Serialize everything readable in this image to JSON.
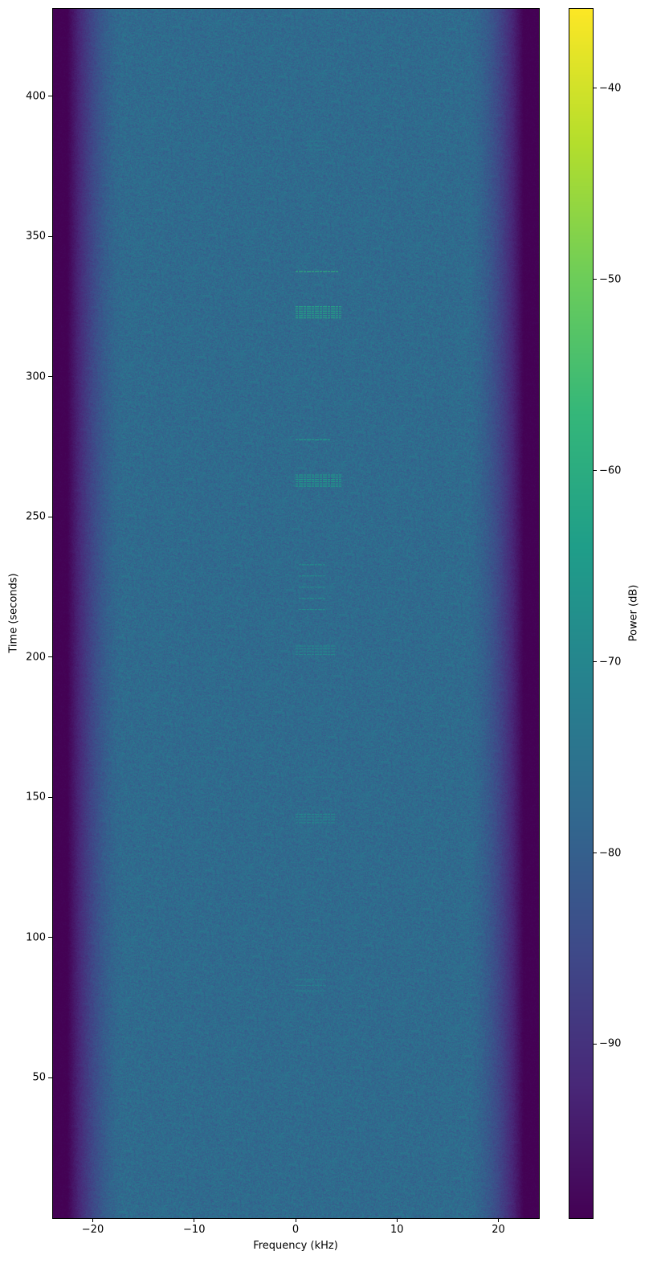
{
  "chart_data": {
    "type": "heatmap",
    "title": "",
    "xlabel": "Frequency (kHz)",
    "ylabel": "Time (seconds)",
    "xlim": [
      -24,
      24
    ],
    "ylim": [
      0,
      431.5
    ],
    "xticks": [
      -20,
      -10,
      0,
      10,
      20
    ],
    "xtick_labels": [
      "−20",
      "−10",
      "0",
      "10",
      "20"
    ],
    "yticks": [
      50,
      100,
      150,
      200,
      250,
      300,
      350,
      400
    ],
    "ytick_labels": [
      "50",
      "100",
      "150",
      "200",
      "250",
      "300",
      "350",
      "400"
    ],
    "colormap": "viridis",
    "colorbar": {
      "label": "Power (dB)",
      "range": [
        -99.1,
        -35.8
      ],
      "ticks": [
        -40,
        -50,
        -60,
        -70,
        -80,
        -90
      ],
      "tick_labels": [
        "−40",
        "−50",
        "−60",
        "−70",
        "−80",
        "−90"
      ]
    },
    "background": {
      "noise_floor_db": -77,
      "noise_spread_db": 6,
      "edge_floor_db": -99,
      "rolloff_start_khz": 17,
      "rolloff_end_khz": 22.5
    },
    "signal_bursts": [
      {
        "t": [
          81,
          85
        ],
        "f": [
          0,
          3
        ],
        "power_db": -71,
        "lines": 3
      },
      {
        "t": [
          97,
          97.5
        ],
        "f": [
          0,
          3
        ],
        "power_db": -74,
        "lines": 1
      },
      {
        "t": [
          141,
          144
        ],
        "f": [
          0,
          4
        ],
        "power_db": -69,
        "lines": 4
      },
      {
        "t": [
          157,
          157.5
        ],
        "f": [
          0,
          4
        ],
        "power_db": -74,
        "lines": 1
      },
      {
        "t": [
          201,
          204
        ],
        "f": [
          0,
          4
        ],
        "power_db": -69,
        "lines": 4
      },
      {
        "t": [
          217,
          233
        ],
        "f": [
          0.3,
          3
        ],
        "power_db": -68,
        "lines": 5
      },
      {
        "t": [
          261,
          265
        ],
        "f": [
          0,
          4.5
        ],
        "power_db": -64,
        "lines": 6
      },
      {
        "t": [
          277.3,
          277.8
        ],
        "f": [
          0,
          3.5
        ],
        "power_db": -64,
        "lines": 1
      },
      {
        "t": [
          321,
          325
        ],
        "f": [
          0,
          4.5
        ],
        "power_db": -62,
        "lines": 6
      },
      {
        "t": [
          337.3,
          337.8
        ],
        "f": [
          0,
          4.2
        ],
        "power_db": -59,
        "lines": 1
      },
      {
        "t": [
          381,
          384
        ],
        "f": [
          1,
          3
        ],
        "power_db": -72,
        "lines": 3
      }
    ],
    "grid": false
  }
}
